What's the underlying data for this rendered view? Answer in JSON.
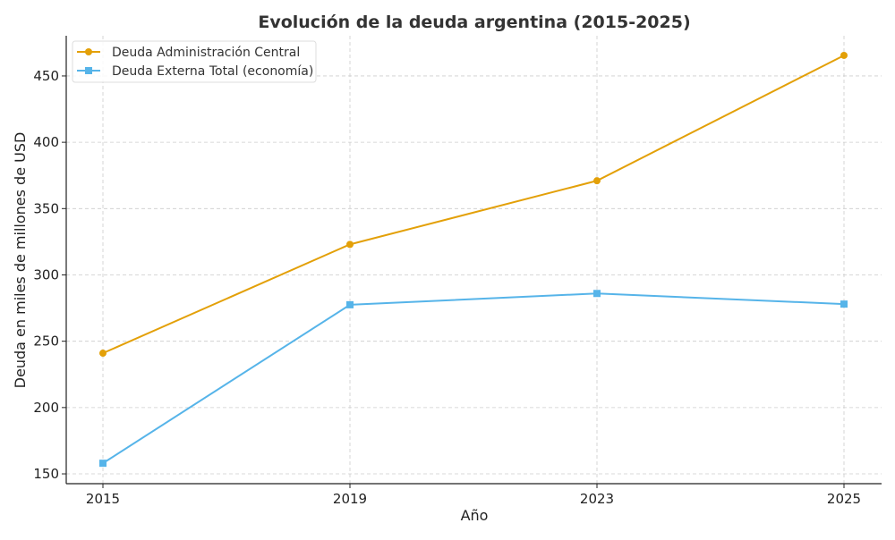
{
  "chart_data": {
    "type": "line",
    "title": "Evolución de la deuda argentina (2015-2025)",
    "xlabel": "Año",
    "ylabel": "Deuda en miles de millones de USD",
    "categories": [
      "2015",
      "2019",
      "2023",
      "2025"
    ],
    "ylim": [
      142.6,
      480.3
    ],
    "yticks": [
      150,
      200,
      250,
      300,
      350,
      400,
      450
    ],
    "grid": true,
    "legend_position": "top-left",
    "series": [
      {
        "name": "Deuda Administración Central",
        "values": [
          241,
          323,
          371,
          465.5
        ],
        "color": "#E3A008",
        "marker": "circle"
      },
      {
        "name": "Deuda Externa Total (economía)",
        "values": [
          158,
          277.5,
          286,
          278
        ],
        "color": "#56B4E9",
        "marker": "square"
      }
    ]
  }
}
